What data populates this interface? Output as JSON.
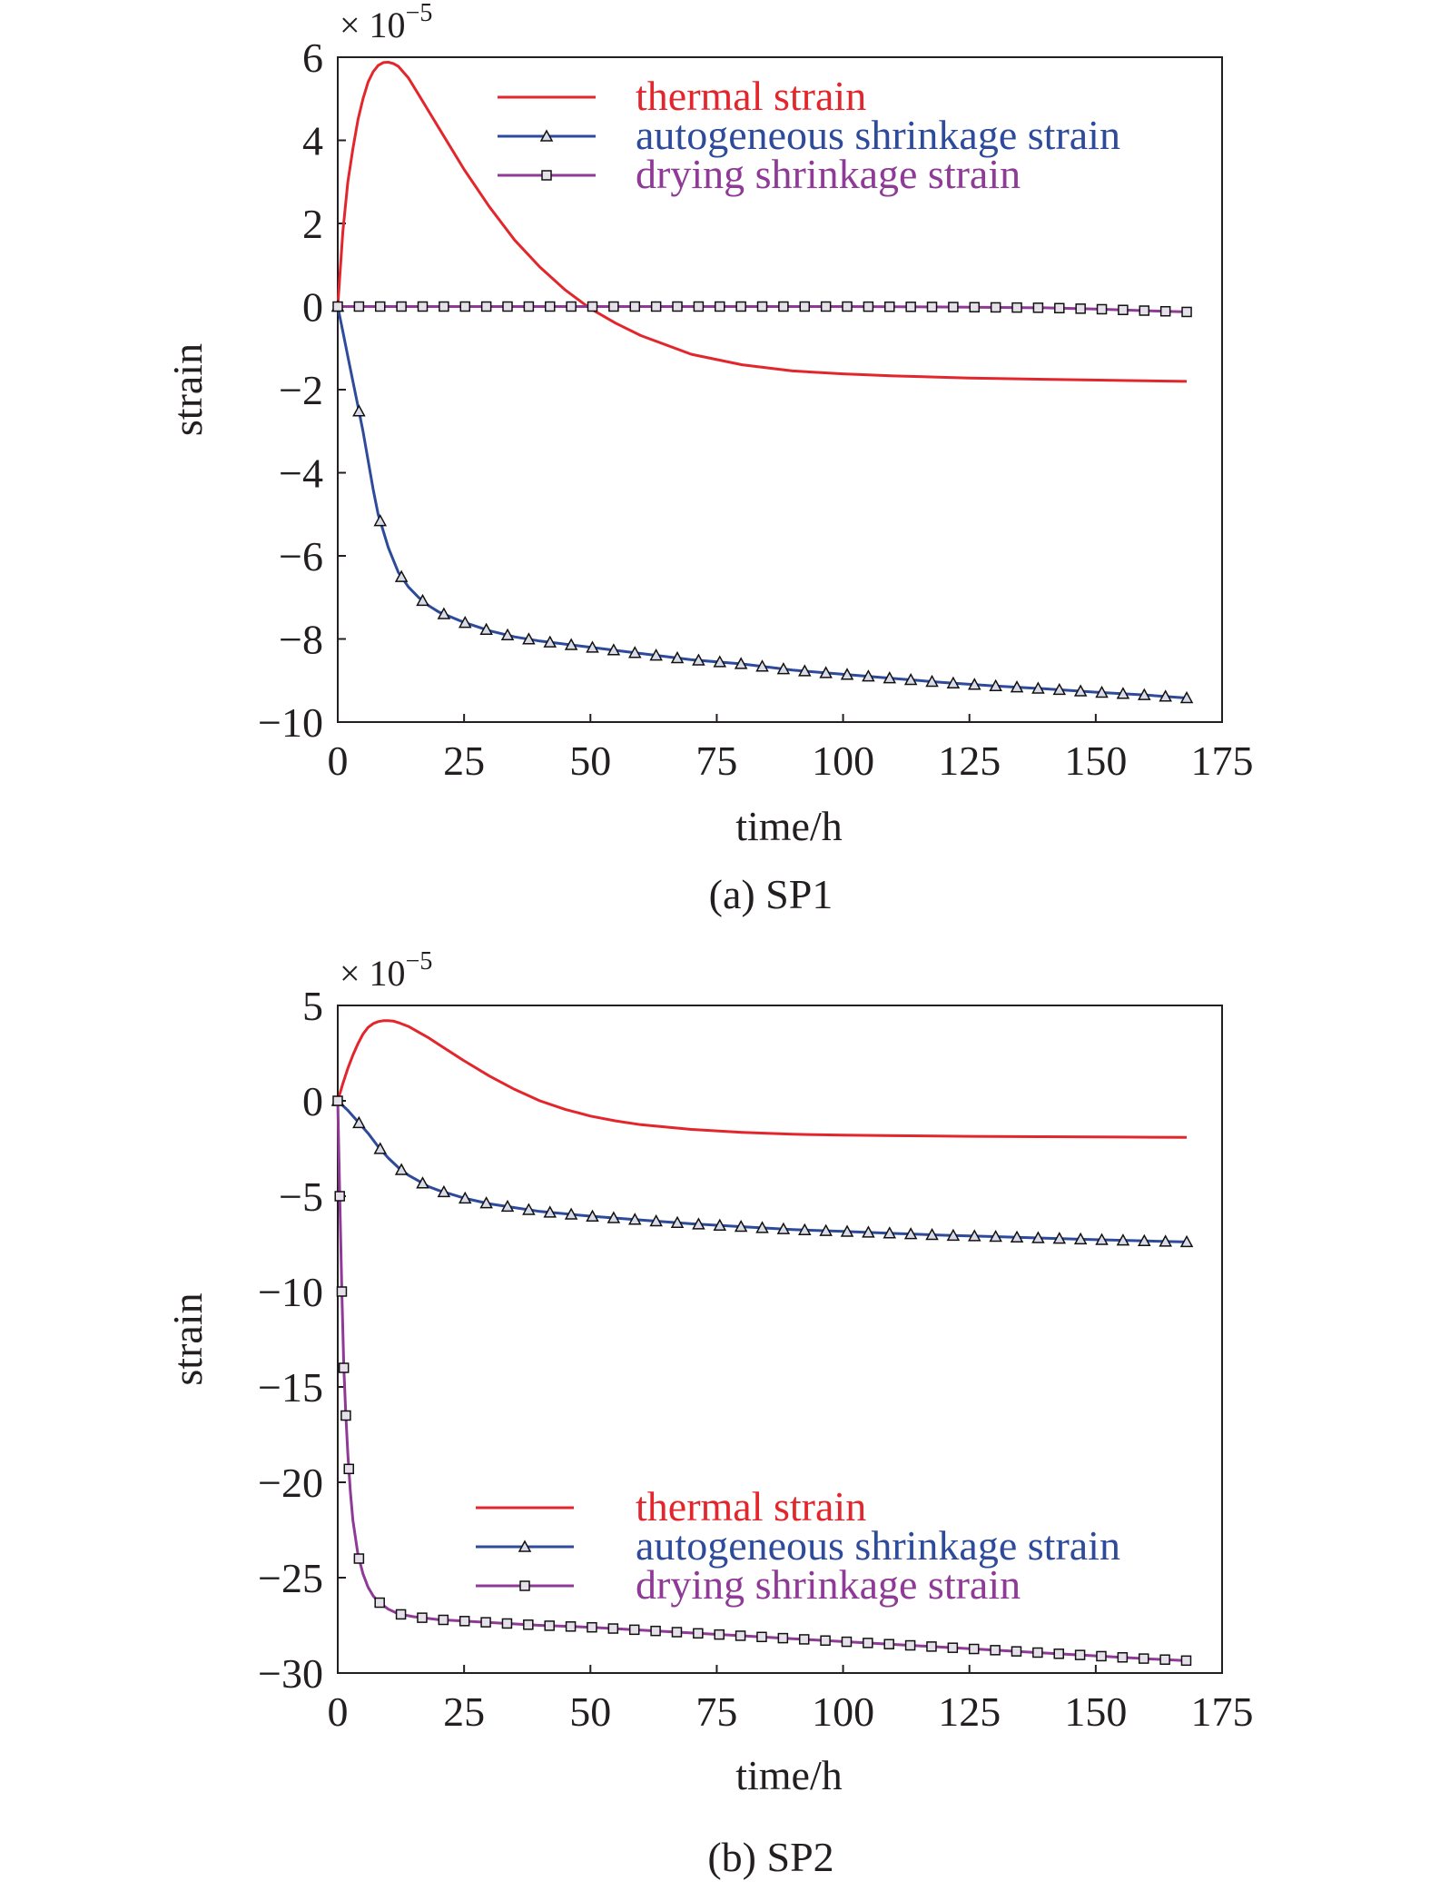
{
  "chart_data": [
    {
      "type": "line",
      "caption": "(a) SP1",
      "xlabel": "time/h",
      "ylabel": "strain",
      "y_multiplier": "× 10",
      "y_multiplier_exp": "−5",
      "xlim": [
        0,
        175
      ],
      "ylim": [
        -10,
        6
      ],
      "xticks": [
        0,
        25,
        50,
        75,
        100,
        125,
        150,
        175
      ],
      "xtick_labels": [
        "0",
        "25",
        "50",
        "75",
        "100",
        "125",
        "150",
        "175"
      ],
      "yticks": [
        6,
        4,
        2,
        0,
        -2,
        -4,
        -6,
        -8,
        -10
      ],
      "ytick_labels": [
        "6",
        "4",
        "2",
        "0",
        "−2",
        "−4",
        "−6",
        "−8",
        "−10"
      ],
      "legend_position": "top-right",
      "grid": false,
      "series": [
        {
          "name": "thermal strain",
          "color": "#e3262c",
          "marker": "none",
          "x": [
            0,
            1,
            2,
            3,
            4,
            5,
            6,
            7,
            8,
            9,
            10,
            11,
            12,
            14,
            16,
            18,
            20,
            25,
            30,
            35,
            40,
            45,
            50,
            55,
            60,
            70,
            80,
            90,
            100,
            110,
            125,
            140,
            155,
            168
          ],
          "y": [
            0,
            1.8,
            3.0,
            3.8,
            4.5,
            5.0,
            5.4,
            5.65,
            5.8,
            5.87,
            5.88,
            5.85,
            5.78,
            5.5,
            5.1,
            4.7,
            4.3,
            3.3,
            2.4,
            1.6,
            0.95,
            0.4,
            -0.05,
            -0.4,
            -0.7,
            -1.15,
            -1.4,
            -1.55,
            -1.62,
            -1.67,
            -1.72,
            -1.75,
            -1.78,
            -1.8
          ]
        },
        {
          "name": "autogeneous shrinkage strain",
          "color": "#2e4b9b",
          "marker": "triangle",
          "x": [
            0,
            1,
            2,
            3,
            4,
            5,
            6,
            7,
            8,
            9,
            10,
            11,
            12,
            14,
            16,
            18,
            20,
            25,
            30,
            35,
            40,
            50,
            60,
            70,
            80,
            90,
            100,
            110,
            120,
            130,
            140,
            150,
            160,
            168
          ],
          "y": [
            0,
            -0.6,
            -1.2,
            -1.8,
            -2.4,
            -3.0,
            -3.7,
            -4.4,
            -5.0,
            -5.4,
            -5.8,
            -6.1,
            -6.4,
            -6.75,
            -7.0,
            -7.2,
            -7.35,
            -7.6,
            -7.8,
            -7.95,
            -8.05,
            -8.2,
            -8.35,
            -8.5,
            -8.6,
            -8.75,
            -8.85,
            -8.95,
            -9.05,
            -9.13,
            -9.2,
            -9.28,
            -9.35,
            -9.42
          ]
        },
        {
          "name": "drying shrinkage strain",
          "color": "#8e3a96",
          "marker": "square",
          "x": [
            0,
            20,
            40,
            60,
            80,
            100,
            120,
            140,
            150,
            160,
            168
          ],
          "y": [
            0,
            0,
            0,
            0,
            0,
            0,
            -0.01,
            -0.03,
            -0.06,
            -0.1,
            -0.13
          ]
        }
      ]
    },
    {
      "type": "line",
      "caption": "(b) SP2",
      "xlabel": "time/h",
      "ylabel": "strain",
      "y_multiplier": "× 10",
      "y_multiplier_exp": "−5",
      "xlim": [
        0,
        175
      ],
      "ylim": [
        -30,
        5
      ],
      "xticks": [
        0,
        25,
        50,
        75,
        100,
        125,
        150,
        175
      ],
      "xtick_labels": [
        "0",
        "25",
        "50",
        "75",
        "100",
        "125",
        "150",
        "175"
      ],
      "yticks": [
        5,
        0,
        -5,
        -10,
        -15,
        -20,
        -25,
        -30
      ],
      "ytick_labels": [
        "5",
        "0",
        "−5",
        "−10",
        "−15",
        "−20",
        "−25",
        "−30"
      ],
      "legend_position": "bottom-right",
      "grid": false,
      "series": [
        {
          "name": "thermal strain",
          "color": "#e3262c",
          "marker": "none",
          "x": [
            0,
            1,
            2,
            3,
            4,
            5,
            6,
            7,
            8,
            9,
            10,
            11,
            12,
            14,
            16,
            18,
            20,
            25,
            30,
            35,
            40,
            45,
            50,
            55,
            60,
            70,
            80,
            90,
            100,
            110,
            125,
            140,
            155,
            168
          ],
          "y": [
            0,
            0.9,
            1.7,
            2.4,
            3.0,
            3.5,
            3.85,
            4.05,
            4.15,
            4.2,
            4.2,
            4.18,
            4.1,
            3.9,
            3.6,
            3.3,
            2.95,
            2.1,
            1.3,
            0.6,
            0.0,
            -0.45,
            -0.8,
            -1.05,
            -1.25,
            -1.5,
            -1.65,
            -1.75,
            -1.8,
            -1.83,
            -1.86,
            -1.88,
            -1.9,
            -1.92
          ]
        },
        {
          "name": "autogeneous shrinkage strain",
          "color": "#2e4b9b",
          "marker": "triangle",
          "x": [
            0,
            2,
            4,
            6,
            8,
            10,
            12,
            14,
            16,
            18,
            20,
            25,
            30,
            35,
            40,
            50,
            60,
            70,
            80,
            90,
            100,
            110,
            120,
            130,
            140,
            150,
            160,
            168
          ],
          "y": [
            0,
            -0.5,
            -1.1,
            -1.7,
            -2.4,
            -3.0,
            -3.5,
            -3.9,
            -4.2,
            -4.5,
            -4.7,
            -5.1,
            -5.4,
            -5.6,
            -5.8,
            -6.05,
            -6.25,
            -6.45,
            -6.6,
            -6.75,
            -6.85,
            -6.95,
            -7.05,
            -7.12,
            -7.2,
            -7.28,
            -7.35,
            -7.4
          ]
        },
        {
          "name": "drying shrinkage strain",
          "color": "#8e3a96",
          "marker": "square",
          "x": [
            0,
            0.4,
            0.8,
            1.2,
            1.6,
            2,
            2.5,
            3,
            4,
            5,
            6,
            7,
            8,
            10,
            12,
            15,
            20,
            30,
            40,
            50,
            60,
            70,
            80,
            90,
            100,
            110,
            120,
            130,
            140,
            150,
            160,
            168
          ],
          "y": [
            0,
            -5,
            -10,
            -14,
            -16.5,
            -18.5,
            -20.5,
            -22,
            -23.8,
            -24.8,
            -25.5,
            -25.95,
            -26.25,
            -26.65,
            -26.9,
            -27.05,
            -27.2,
            -27.35,
            -27.5,
            -27.6,
            -27.75,
            -27.9,
            -28.05,
            -28.2,
            -28.35,
            -28.5,
            -28.65,
            -28.8,
            -28.95,
            -29.1,
            -29.25,
            -29.35
          ]
        }
      ]
    }
  ]
}
